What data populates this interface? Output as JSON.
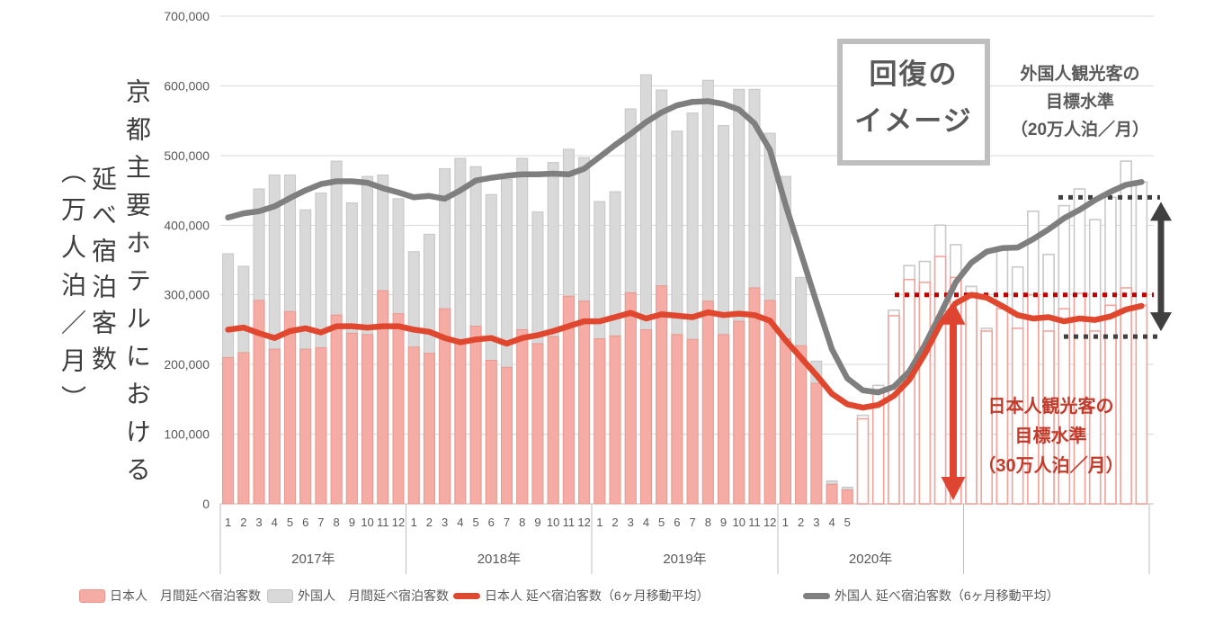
{
  "axis_title": {
    "col1": "京都主要ホテルにおける",
    "col2": "延べ宿泊客数",
    "col3": "（万人泊／月）"
  },
  "annotations": {
    "recovery": {
      "line1": "回復の",
      "line2": "イメージ"
    },
    "foreign_target": {
      "line1": "外国人観光客の",
      "line2": "目標水準",
      "line3": "（20万人泊／月）"
    },
    "japanese_target": {
      "line1": "日本人観光客の",
      "line2": "目標水準",
      "line3": "（30万人泊／月）"
    }
  },
  "legend": {
    "items": [
      {
        "type": "bar",
        "color": "#F5ACA5",
        "border": "#E8978E",
        "label": "日本人　月間延べ宿泊客数"
      },
      {
        "type": "bar",
        "color": "#D9D9D9",
        "border": "#C3C3C3",
        "label": "外国人　月間延べ宿泊客数"
      },
      {
        "type": "line",
        "color": "#E0472F",
        "border": "#E0472F",
        "label": "日本人 延べ宿泊客数（6ヶ月移動平均）"
      },
      {
        "type": "line",
        "color": "#7F7F7F",
        "border": "#7F7F7F",
        "label": "外国人 延べ宿泊客数（6ヶ月移動平均）"
      }
    ]
  },
  "colors": {
    "jp_bar": "#F5ACA5",
    "jp_bar_border": "#E8978E",
    "fg_bar": "#D9D9D9",
    "fg_bar_border": "#C6C6C6",
    "jp_outline": "#F2A49C",
    "fg_outline": "#C9C9C9",
    "jp_line": "#E0472F",
    "fg_line": "#7F7F7F",
    "grid": "#D9D9D9",
    "axis": "#BFBFBF",
    "text": "#595959",
    "red_dotted": "#C00000",
    "dark": "#404040",
    "red_arrow": "#DF4430"
  },
  "chart_data": {
    "type": "bar+line",
    "title": "",
    "xlabel": "",
    "ylabel": "京都主要ホテルにおける延べ宿泊客数（万人泊／月）",
    "legend_position": "bottom",
    "grid": true,
    "y_axis": {
      "min": 0,
      "max": 700000,
      "step": 100000,
      "tick_labels": [
        "0",
        "100,000",
        "200,000",
        "300,000",
        "400,000",
        "500,000",
        "600,000",
        "700,000"
      ]
    },
    "sections": [
      {
        "label": "2017年",
        "month_labels": [
          "1",
          "2",
          "3",
          "4",
          "5",
          "6",
          "7",
          "8",
          "9",
          "10",
          "11",
          "12"
        ]
      },
      {
        "label": "2018年",
        "month_labels": [
          "1",
          "2",
          "3",
          "4",
          "5",
          "6",
          "7",
          "8",
          "9",
          "10",
          "11",
          "12"
        ]
      },
      {
        "label": "2019年",
        "month_labels": [
          "1",
          "2",
          "3",
          "4",
          "5",
          "6",
          "7",
          "8",
          "9",
          "10",
          "11",
          "12"
        ]
      },
      {
        "label": "2020年",
        "month_labels": [
          "1",
          "2",
          "3",
          "4",
          "5",
          "",
          "",
          "",
          "",
          "",
          "",
          ""
        ]
      },
      {
        "label": "",
        "month_labels": [
          "",
          "",
          "",
          "",
          "",
          "",
          "",
          "",
          "",
          "",
          "",
          ""
        ]
      }
    ],
    "projected_from": 41,
    "series": [
      {
        "name": "日本人 月間延べ宿泊客数",
        "type": "bar",
        "values": [
          210000,
          217000,
          292000,
          222000,
          276000,
          222000,
          224000,
          271000,
          245000,
          243000,
          306000,
          273000,
          225000,
          216000,
          280000,
          230000,
          255000,
          206000,
          196000,
          250000,
          230000,
          240000,
          298000,
          291000,
          237000,
          241000,
          303000,
          250000,
          313000,
          243000,
          236000,
          291000,
          243000,
          262000,
          310000,
          292000,
          237000,
          227000,
          173000,
          28000,
          20000,
          122000,
          164000,
          270000,
          322000,
          318000,
          355000,
          325000,
          302000,
          248000,
          280000,
          252000,
          300000,
          248000,
          280000,
          302000,
          248000,
          285000,
          310000,
          285000
        ]
      },
      {
        "name": "外国人 月間延べ宿泊客数",
        "type": "bar",
        "values": [
          359000,
          341000,
          452000,
          472000,
          472000,
          422000,
          446000,
          492000,
          432000,
          470000,
          472000,
          438000,
          362000,
          387000,
          481000,
          496000,
          484000,
          444000,
          466000,
          496000,
          419000,
          490000,
          509000,
          497000,
          434000,
          448000,
          567000,
          616000,
          594000,
          535000,
          561000,
          608000,
          543000,
          595000,
          595000,
          532000,
          470000,
          325000,
          205000,
          33000,
          24000,
          127000,
          170000,
          278000,
          342000,
          348000,
          400000,
          372000,
          312000,
          252000,
          368000,
          340000,
          420000,
          358000,
          428000,
          452000,
          408000,
          440000,
          492000,
          462000
        ]
      },
      {
        "name": "日本人 延べ宿泊客数（6ヶ月移動平均）",
        "type": "line",
        "values": [
          250000,
          253000,
          245000,
          238000,
          248000,
          252000,
          246000,
          255000,
          255000,
          253000,
          255000,
          255000,
          250000,
          247000,
          238000,
          232000,
          236000,
          238000,
          230000,
          238000,
          242000,
          248000,
          255000,
          262000,
          262000,
          268000,
          274000,
          266000,
          272000,
          270000,
          268000,
          275000,
          271000,
          273000,
          271000,
          263000,
          235000,
          210000,
          185000,
          158000,
          143000,
          138000,
          142000,
          155000,
          178000,
          215000,
          258000,
          288000,
          300000,
          296000,
          284000,
          271000,
          266000,
          268000,
          262000,
          266000,
          264000,
          269000,
          279000,
          284000
        ]
      },
      {
        "name": "外国人 延べ宿泊客数（6ヶ月移動平均）",
        "type": "line",
        "values": [
          411000,
          417000,
          420000,
          427000,
          439000,
          450000,
          459000,
          463000,
          463000,
          461000,
          453000,
          447000,
          440000,
          442000,
          438000,
          450000,
          464000,
          468000,
          471000,
          473000,
          473000,
          474000,
          473000,
          481000,
          498000,
          515000,
          531000,
          548000,
          562000,
          572000,
          577000,
          578000,
          574000,
          566000,
          546000,
          508000,
          430000,
          360000,
          290000,
          222000,
          180000,
          163000,
          160000,
          168000,
          190000,
          228000,
          272000,
          318000,
          346000,
          362000,
          367000,
          368000,
          380000,
          394000,
          410000,
          422000,
          436000,
          448000,
          458000,
          462000
        ]
      }
    ],
    "reference_lines": [
      {
        "id": "japanese-target-line",
        "value": 300000,
        "style": "dotted",
        "color": "#C00000"
      },
      {
        "id": "foreign-target-upper",
        "value": 440000,
        "style": "dotted",
        "color": "#404040"
      },
      {
        "id": "foreign-target-lower",
        "value": 240000,
        "style": "dotted",
        "color": "#404040"
      }
    ]
  }
}
